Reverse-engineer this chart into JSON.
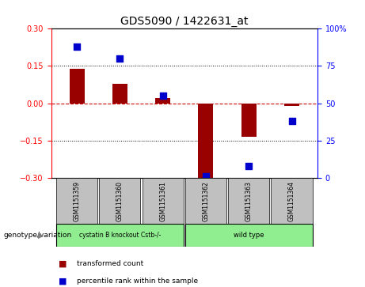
{
  "title": "GDS5090 / 1422631_at",
  "samples": [
    "GSM1151359",
    "GSM1151360",
    "GSM1151361",
    "GSM1151362",
    "GSM1151363",
    "GSM1151364"
  ],
  "transformed_count": [
    0.14,
    0.08,
    0.02,
    -0.3,
    -0.135,
    -0.01
  ],
  "percentile_rank": [
    88,
    80,
    55,
    1,
    8,
    38
  ],
  "ylim_left": [
    -0.3,
    0.3
  ],
  "ylim_right": [
    0,
    100
  ],
  "yticks_left": [
    -0.3,
    -0.15,
    0,
    0.15,
    0.3
  ],
  "yticks_right": [
    0,
    25,
    50,
    75,
    100
  ],
  "bar_color": "#990000",
  "dot_color": "#0000cc",
  "zero_line_color": "#cc0000",
  "group1_label": "cystatin B knockout Cstb-/-",
  "group2_label": "wild type",
  "group_bg_color": "#90ee90",
  "sample_bg_color": "#c0c0c0",
  "legend_tc_label": "transformed count",
  "legend_pr_label": "percentile rank within the sample",
  "genotype_label": "genotype/variation",
  "background_color": "#ffffff"
}
